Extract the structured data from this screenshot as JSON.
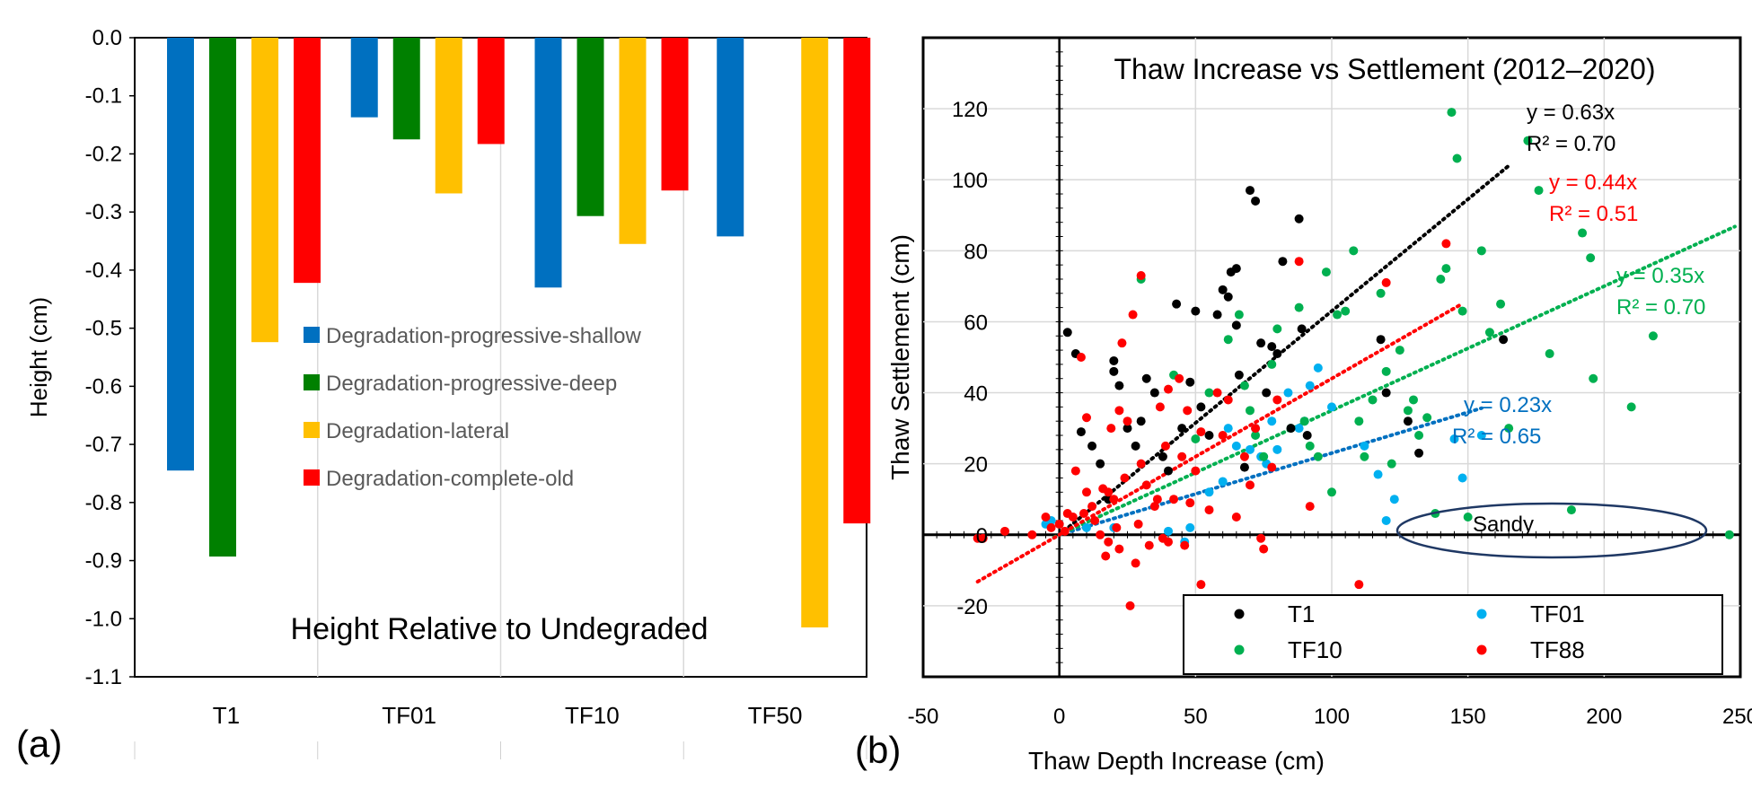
{
  "panel_labels": {
    "a": "(a)",
    "b": "(b)"
  },
  "chart_data": [
    {
      "type": "bar",
      "panel": "(a)",
      "title": "Height Relative to Undegraded",
      "xlabel": "",
      "ylabel": "Height (cm)",
      "ylim": [
        -1.1,
        0.0
      ],
      "yticks": [
        0.0,
        -0.1,
        -0.2,
        -0.3,
        -0.4,
        -0.5,
        -0.6,
        -0.7,
        -0.8,
        -0.9,
        -1.0,
        -1.1
      ],
      "ytick_labels": [
        "0.0",
        "-0.1",
        "-0.2",
        "-0.3",
        "-0.4",
        "-0.5",
        "-0.6",
        "-0.7",
        "-0.8",
        "-0.9",
        "-1.0",
        "-1.1"
      ],
      "categories": [
        "T1",
        "TF01",
        "TF10",
        "TF50"
      ],
      "legend_position": "center",
      "grid": "vertical only",
      "series": [
        {
          "name": "Degradation-progressive-shallow",
          "color": "#0070C0",
          "values": [
            -0.745,
            -0.137,
            -0.43,
            -0.342
          ]
        },
        {
          "name": "Degradation-progressive-deep",
          "color": "#008000",
          "values": [
            -0.893,
            -0.175,
            -0.307,
            null
          ]
        },
        {
          "name": "Degradation-lateral",
          "color": "#FFC000",
          "values": [
            -0.524,
            -0.268,
            -0.355,
            -1.015
          ]
        },
        {
          "name": "Degradation-complete-old",
          "color": "#FF0000",
          "values": [
            -0.422,
            -0.183,
            -0.263,
            -0.836
          ]
        }
      ]
    },
    {
      "type": "scatter",
      "panel": "(b)",
      "title": "Thaw Increase vs Settlement (2012–2020)",
      "xlabel": "Thaw Depth Increase (cm)",
      "ylabel": "Thaw Settlement (cm)",
      "xlim": [
        -50,
        250
      ],
      "ylim": [
        -40,
        140
      ],
      "xticks": [
        -50,
        0,
        50,
        100,
        150,
        200,
        250
      ],
      "xtick_labels": [
        "-50",
        "0",
        "50",
        "100",
        "150",
        "200",
        "250"
      ],
      "yticks": [
        -20,
        0,
        20,
        40,
        60,
        80,
        100,
        120
      ],
      "ytick_labels": [
        "-20",
        "0",
        "20",
        "40",
        "60",
        "80",
        "100",
        "120"
      ],
      "grid": true,
      "legend_position": "bottom",
      "annotation": "Sandy",
      "series": [
        {
          "name": "T1",
          "color": "#000000",
          "points": [
            [
              3,
              57
            ],
            [
              6,
              51
            ],
            [
              8,
              29
            ],
            [
              12,
              25
            ],
            [
              15,
              20
            ],
            [
              18,
              10
            ],
            [
              20,
              49
            ],
            [
              20,
              46
            ],
            [
              22,
              42
            ],
            [
              25,
              30
            ],
            [
              28,
              25
            ],
            [
              30,
              32
            ],
            [
              32,
              44
            ],
            [
              35,
              40
            ],
            [
              38,
              22
            ],
            [
              40,
              18
            ],
            [
              43,
              65
            ],
            [
              45,
              30
            ],
            [
              48,
              43
            ],
            [
              50,
              63
            ],
            [
              52,
              36
            ],
            [
              55,
              28
            ],
            [
              58,
              62
            ],
            [
              60,
              69
            ],
            [
              62,
              67
            ],
            [
              63,
              74
            ],
            [
              65,
              75
            ],
            [
              65,
              59
            ],
            [
              66,
              45
            ],
            [
              68,
              19
            ],
            [
              70,
              97
            ],
            [
              72,
              94
            ],
            [
              74,
              54
            ],
            [
              76,
              40
            ],
            [
              78,
              53
            ],
            [
              80,
              51
            ],
            [
              82,
              77
            ],
            [
              85,
              30
            ],
            [
              88,
              89
            ],
            [
              89,
              58
            ],
            [
              91,
              28
            ],
            [
              118,
              55
            ],
            [
              120,
              40
            ],
            [
              128,
              32
            ],
            [
              132,
              23
            ],
            [
              163,
              55
            ]
          ],
          "fit": {
            "label": "y = 0.63x",
            "r2_label": "R² = 0.70",
            "slope": 0.63,
            "x_range": [
              0,
              165
            ]
          }
        },
        {
          "name": "TF01",
          "color": "#00B0F0",
          "points": [
            [
              -5,
              3
            ],
            [
              -3,
              4
            ],
            [
              0,
              3
            ],
            [
              10,
              2
            ],
            [
              20,
              2
            ],
            [
              40,
              1
            ],
            [
              46,
              -2
            ],
            [
              48,
              2
            ],
            [
              55,
              12
            ],
            [
              60,
              15
            ],
            [
              62,
              30
            ],
            [
              65,
              25
            ],
            [
              70,
              24
            ],
            [
              72,
              30
            ],
            [
              74,
              22
            ],
            [
              76,
              20
            ],
            [
              78,
              32
            ],
            [
              80,
              24
            ],
            [
              84,
              40
            ],
            [
              88,
              30
            ],
            [
              90,
              32
            ],
            [
              92,
              42
            ],
            [
              95,
              47
            ],
            [
              100,
              36
            ],
            [
              112,
              25
            ],
            [
              117,
              17
            ],
            [
              120,
              4
            ],
            [
              123,
              10
            ],
            [
              145,
              27
            ],
            [
              148,
              16
            ],
            [
              155,
              28
            ]
          ],
          "fit": {
            "label": "y = 0.23x",
            "r2_label": "R² = 0.65",
            "slope": 0.23,
            "x_range": [
              0,
              155
            ]
          }
        },
        {
          "name": "TF10",
          "color": "#00B050",
          "points": [
            [
              30,
              72
            ],
            [
              42,
              45
            ],
            [
              50,
              27
            ],
            [
              55,
              40
            ],
            [
              62,
              55
            ],
            [
              66,
              62
            ],
            [
              68,
              42
            ],
            [
              70,
              35
            ],
            [
              72,
              28
            ],
            [
              75,
              22
            ],
            [
              78,
              48
            ],
            [
              80,
              58
            ],
            [
              85,
              30
            ],
            [
              88,
              64
            ],
            [
              90,
              32
            ],
            [
              92,
              25
            ],
            [
              95,
              22
            ],
            [
              98,
              74
            ],
            [
              100,
              12
            ],
            [
              102,
              62
            ],
            [
              105,
              63
            ],
            [
              108,
              80
            ],
            [
              110,
              32
            ],
            [
              112,
              22
            ],
            [
              115,
              38
            ],
            [
              118,
              68
            ],
            [
              120,
              46
            ],
            [
              122,
              20
            ],
            [
              125,
              52
            ],
            [
              128,
              35
            ],
            [
              130,
              38
            ],
            [
              132,
              28
            ],
            [
              135,
              33
            ],
            [
              138,
              6
            ],
            [
              140,
              72
            ],
            [
              142,
              75
            ],
            [
              144,
              119
            ],
            [
              146,
              106
            ],
            [
              148,
              63
            ],
            [
              150,
              5
            ],
            [
              155,
              80
            ],
            [
              158,
              57
            ],
            [
              162,
              65
            ],
            [
              165,
              30
            ],
            [
              172,
              111
            ],
            [
              176,
              97
            ],
            [
              180,
              51
            ],
            [
              188,
              7
            ],
            [
              192,
              85
            ],
            [
              195,
              78
            ],
            [
              196,
              44
            ],
            [
              210,
              36
            ],
            [
              218,
              56
            ],
            [
              246,
              0
            ]
          ],
          "fit": {
            "label": "y = 0.35x",
            "r2_label": "R² = 0.70",
            "slope": 0.35,
            "x_range": [
              -2,
              248
            ]
          }
        },
        {
          "name": "TF88",
          "color": "#FF0000",
          "points": [
            [
              -30,
              -1
            ],
            [
              -28,
              -1
            ],
            [
              -20,
              1
            ],
            [
              -10,
              0
            ],
            [
              -5,
              5
            ],
            [
              -3,
              2
            ],
            [
              0,
              3
            ],
            [
              2,
              1
            ],
            [
              3,
              6
            ],
            [
              5,
              5
            ],
            [
              6,
              18
            ],
            [
              8,
              50
            ],
            [
              9,
              6
            ],
            [
              10,
              33
            ],
            [
              10,
              12
            ],
            [
              12,
              8
            ],
            [
              13,
              4
            ],
            [
              15,
              0
            ],
            [
              16,
              13
            ],
            [
              17,
              -6
            ],
            [
              18,
              12
            ],
            [
              18,
              -2
            ],
            [
              19,
              30
            ],
            [
              20,
              10
            ],
            [
              21,
              2
            ],
            [
              22,
              35
            ],
            [
              22,
              -4
            ],
            [
              23,
              54
            ],
            [
              24,
              16
            ],
            [
              25,
              32
            ],
            [
              26,
              -20
            ],
            [
              27,
              62
            ],
            [
              28,
              -8
            ],
            [
              29,
              3
            ],
            [
              30,
              73
            ],
            [
              30,
              20
            ],
            [
              32,
              14
            ],
            [
              33,
              -3
            ],
            [
              35,
              8
            ],
            [
              36,
              10
            ],
            [
              37,
              36
            ],
            [
              38,
              -1
            ],
            [
              39,
              25
            ],
            [
              40,
              41
            ],
            [
              40,
              -2
            ],
            [
              42,
              10
            ],
            [
              44,
              44
            ],
            [
              45,
              22
            ],
            [
              46,
              -3
            ],
            [
              47,
              35
            ],
            [
              48,
              9
            ],
            [
              50,
              18
            ],
            [
              52,
              29
            ],
            [
              52,
              -14
            ],
            [
              55,
              7
            ],
            [
              58,
              40
            ],
            [
              60,
              28
            ],
            [
              62,
              38
            ],
            [
              65,
              5
            ],
            [
              68,
              22
            ],
            [
              70,
              14
            ],
            [
              72,
              30
            ],
            [
              74,
              -1
            ],
            [
              75,
              -4
            ],
            [
              78,
              19
            ],
            [
              80,
              38
            ],
            [
              88,
              77
            ],
            [
              92,
              8
            ],
            [
              110,
              -14
            ],
            [
              120,
              71
            ],
            [
              142,
              82
            ]
          ],
          "fit": {
            "label": "y = 0.44x",
            "r2_label": "R² = 0.51",
            "slope": 0.44,
            "x_range": [
              -30,
              147
            ]
          }
        }
      ]
    }
  ]
}
